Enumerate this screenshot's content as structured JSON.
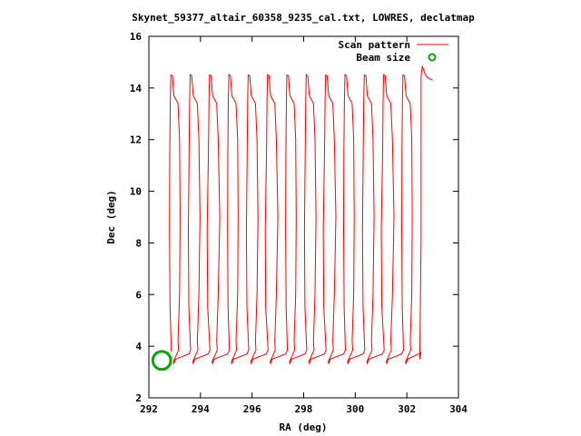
{
  "chart_data": {
    "type": "line",
    "title": "Skynet_59377_altair_60358_9235_cal.txt, LOWRES, declatmap",
    "xlabel": "RA (deg)",
    "ylabel": "Dec (deg)",
    "xlim": [
      292,
      304
    ],
    "ylim": [
      2,
      16
    ],
    "xticks": [
      292,
      294,
      296,
      298,
      300,
      302,
      304
    ],
    "yticks": [
      2,
      4,
      6,
      8,
      10,
      12,
      14,
      16
    ],
    "xtick_labels": [
      "292",
      "294",
      "296",
      "298",
      "300",
      "302",
      "304"
    ],
    "ytick_labels": [
      "2",
      "4",
      "6",
      "8",
      "10",
      "12",
      "14",
      "16"
    ],
    "grid": false,
    "legend_position": "top-right",
    "series": [
      {
        "name": "Scan pattern",
        "color": "#ff0000",
        "style": "line",
        "sweeps_ra": [
          292.85,
          293.6,
          294.35,
          295.1,
          295.85,
          296.6,
          297.35,
          298.1,
          298.85,
          299.6,
          300.35,
          301.1,
          301.85
        ],
        "dec_low": 3.35,
        "dec_high": 14.5,
        "tail": [
          {
            "x": 302.55,
            "y": 3.75
          },
          {
            "x": 302.5,
            "y": 3.5
          },
          {
            "x": 302.55,
            "y": 8.0
          },
          {
            "x": 302.55,
            "y": 14.45
          },
          {
            "x": 302.6,
            "y": 14.85
          },
          {
            "x": 302.7,
            "y": 14.55
          },
          {
            "x": 302.8,
            "y": 14.4
          },
          {
            "x": 303.0,
            "y": 14.3
          }
        ]
      },
      {
        "name": "Beam size",
        "color": "#00aa00",
        "style": "circle",
        "center": {
          "x": 292.5,
          "y": 3.45
        },
        "radius_deg": 0.35
      }
    ]
  }
}
